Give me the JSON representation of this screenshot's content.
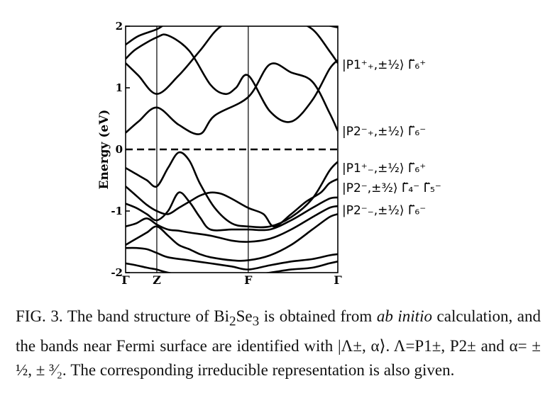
{
  "chart_data": {
    "type": "line",
    "title": "",
    "xlabel": "",
    "ylabel": "Energy (eV)",
    "ylim": [
      -2,
      2
    ],
    "yticks": [
      "2",
      "1",
      "0",
      "-1",
      "-2"
    ],
    "ytick_values": [
      2,
      1,
      0,
      -1,
      -2
    ],
    "k_points": [
      {
        "label": "Γ",
        "x": 0
      },
      {
        "label": "Z",
        "x": 0.147
      },
      {
        "label": "F",
        "x": 0.578
      },
      {
        "label": "Γ",
        "x": 1
      }
    ],
    "fermi_level": 0,
    "bands": [
      {
        "x": [
          0,
          0.06,
          0.147,
          0.25,
          0.35,
          0.42,
          0.578,
          0.68,
          0.78,
          0.88,
          0.96,
          1
        ],
        "y": [
          0.27,
          0.45,
          0.68,
          0.4,
          0.25,
          0.55,
          0.85,
          1.38,
          1.25,
          1.1,
          0.6,
          0.3
        ]
      },
      {
        "x": [
          0,
          0.06,
          0.147,
          0.25,
          0.35,
          0.45,
          0.578,
          0.68,
          0.78,
          0.88,
          0.96,
          1
        ],
        "y": [
          1.4,
          1.2,
          0.9,
          1.2,
          1.6,
          2.0,
          2.1,
          2.1,
          2.1,
          1.95,
          1.6,
          1.4
        ]
      },
      {
        "x": [
          0,
          0.05,
          0.147,
          0.2,
          0.3,
          0.4,
          0.47,
          0.52,
          0.578,
          0.68,
          0.78,
          0.88,
          0.96,
          1
        ],
        "y": [
          1.47,
          1.63,
          1.82,
          1.85,
          1.6,
          1.05,
          0.9,
          1.0,
          1.2,
          0.62,
          0.45,
          0.8,
          1.3,
          1.45
        ]
      },
      {
        "x": [
          0,
          0.06,
          0.147,
          0.2,
          0.3,
          0.4,
          0.5,
          0.578,
          0.7,
          0.8,
          0.9,
          1
        ],
        "y": [
          1.7,
          1.84,
          1.95,
          2.05,
          2.1,
          2.1,
          2.1,
          2.1,
          2.1,
          2.1,
          2.05,
          1.98
        ]
      },
      {
        "x": [
          0,
          0.05,
          0.1,
          0.147,
          0.2,
          0.25,
          0.3,
          0.35,
          0.42,
          0.5,
          0.578,
          0.68,
          0.78,
          0.88,
          0.96,
          1
        ],
        "y": [
          -0.3,
          -0.4,
          -0.5,
          -0.6,
          -0.3,
          -0.05,
          -0.18,
          -0.55,
          -0.95,
          -1.2,
          -1.25,
          -1.25,
          -1.1,
          -0.8,
          -0.35,
          -0.2
        ]
      },
      {
        "x": [
          0,
          0.05,
          0.1,
          0.147,
          0.2,
          0.25,
          0.3,
          0.35,
          0.4,
          0.45,
          0.5,
          0.578,
          0.65,
          0.7,
          0.78,
          0.85,
          0.92,
          0.96,
          1
        ],
        "y": [
          -0.6,
          -0.75,
          -0.9,
          -1.0,
          -1.05,
          -0.95,
          -0.85,
          -0.75,
          -0.7,
          -0.72,
          -0.8,
          -0.95,
          -1.05,
          -1.25,
          -1.05,
          -0.85,
          -0.7,
          -0.55,
          -0.48
        ]
      },
      {
        "x": [
          0,
          0.05,
          0.1,
          0.147,
          0.2,
          0.25,
          0.3,
          0.35,
          0.4,
          0.5,
          0.578,
          0.68,
          0.78,
          0.88,
          0.96,
          1
        ],
        "y": [
          -0.88,
          -0.95,
          -1.05,
          -1.15,
          -1.0,
          -0.7,
          -0.85,
          -1.1,
          -1.3,
          -1.3,
          -1.3,
          -1.3,
          -1.15,
          -0.95,
          -0.8,
          -0.78
        ]
      },
      {
        "x": [
          0,
          0.05,
          0.1,
          0.147,
          0.2,
          0.25,
          0.3,
          0.4,
          0.5,
          0.578,
          0.68,
          0.78,
          0.88,
          0.96,
          1
        ],
        "y": [
          -1.25,
          -1.2,
          -1.12,
          -1.22,
          -1.3,
          -1.32,
          -1.35,
          -1.4,
          -1.48,
          -1.5,
          -1.45,
          -1.3,
          -1.1,
          -0.95,
          -0.92
        ]
      },
      {
        "x": [
          0,
          0.05,
          0.1,
          0.147,
          0.2,
          0.25,
          0.3,
          0.35,
          0.4,
          0.5,
          0.578,
          0.68,
          0.78,
          0.88,
          0.96,
          1
        ],
        "y": [
          -1.55,
          -1.45,
          -1.35,
          -1.25,
          -1.4,
          -1.55,
          -1.62,
          -1.7,
          -1.75,
          -1.8,
          -1.8,
          -1.72,
          -1.55,
          -1.3,
          -1.1,
          -1.05
        ]
      },
      {
        "x": [
          0,
          0.05,
          0.1,
          0.147,
          0.2,
          0.3,
          0.4,
          0.5,
          0.578,
          0.68,
          0.78,
          0.88,
          0.96,
          1
        ],
        "y": [
          -1.6,
          -1.6,
          -1.62,
          -1.68,
          -1.75,
          -1.8,
          -1.85,
          -1.9,
          -1.95,
          -1.88,
          -1.82,
          -1.78,
          -1.72,
          -1.7
        ]
      },
      {
        "x": [
          0,
          0.05,
          0.1,
          0.147,
          0.2,
          0.3,
          0.4,
          0.5,
          0.578,
          0.68,
          0.78,
          0.88,
          0.96,
          1
        ],
        "y": [
          -1.85,
          -1.88,
          -1.92,
          -1.95,
          -2.0,
          -2.05,
          -2.05,
          -2.05,
          -2.05,
          -2.0,
          -1.95,
          -1.92,
          -1.85,
          -1.82
        ]
      }
    ],
    "annotations": [
      {
        "energy": 1.38,
        "text": "|P1⁺₊,±½⟩ Γ̃₆⁺"
      },
      {
        "energy": 0.3,
        "text": "|P2⁻₊,±½⟩ Γ̃₆⁻"
      },
      {
        "energy": -0.3,
        "text": "|P1⁺₋,±½⟩ Γ̃₆⁺"
      },
      {
        "energy": -0.62,
        "text": "|P2⁻,±³⁄₂⟩ Γ̃₄⁻ Γ̃₅⁻"
      },
      {
        "energy": -0.98,
        "text": "|P2⁻₋,±½⟩ Γ̃₆⁻"
      }
    ]
  },
  "caption": {
    "lead": "FIG. 3. The band structure of Bi",
    "sub1": "2",
    "mid1": "Se",
    "sub2": "3",
    "mid2": " is obtained from ",
    "italic": "ab initio",
    "rest": " calculation, and the bands near Fermi surface are identified with |Λ±, α⟩. Λ=P1±, P2± and α= ± ½, ± ³⁄₂. The corresponding irreducible representation is also given."
  }
}
